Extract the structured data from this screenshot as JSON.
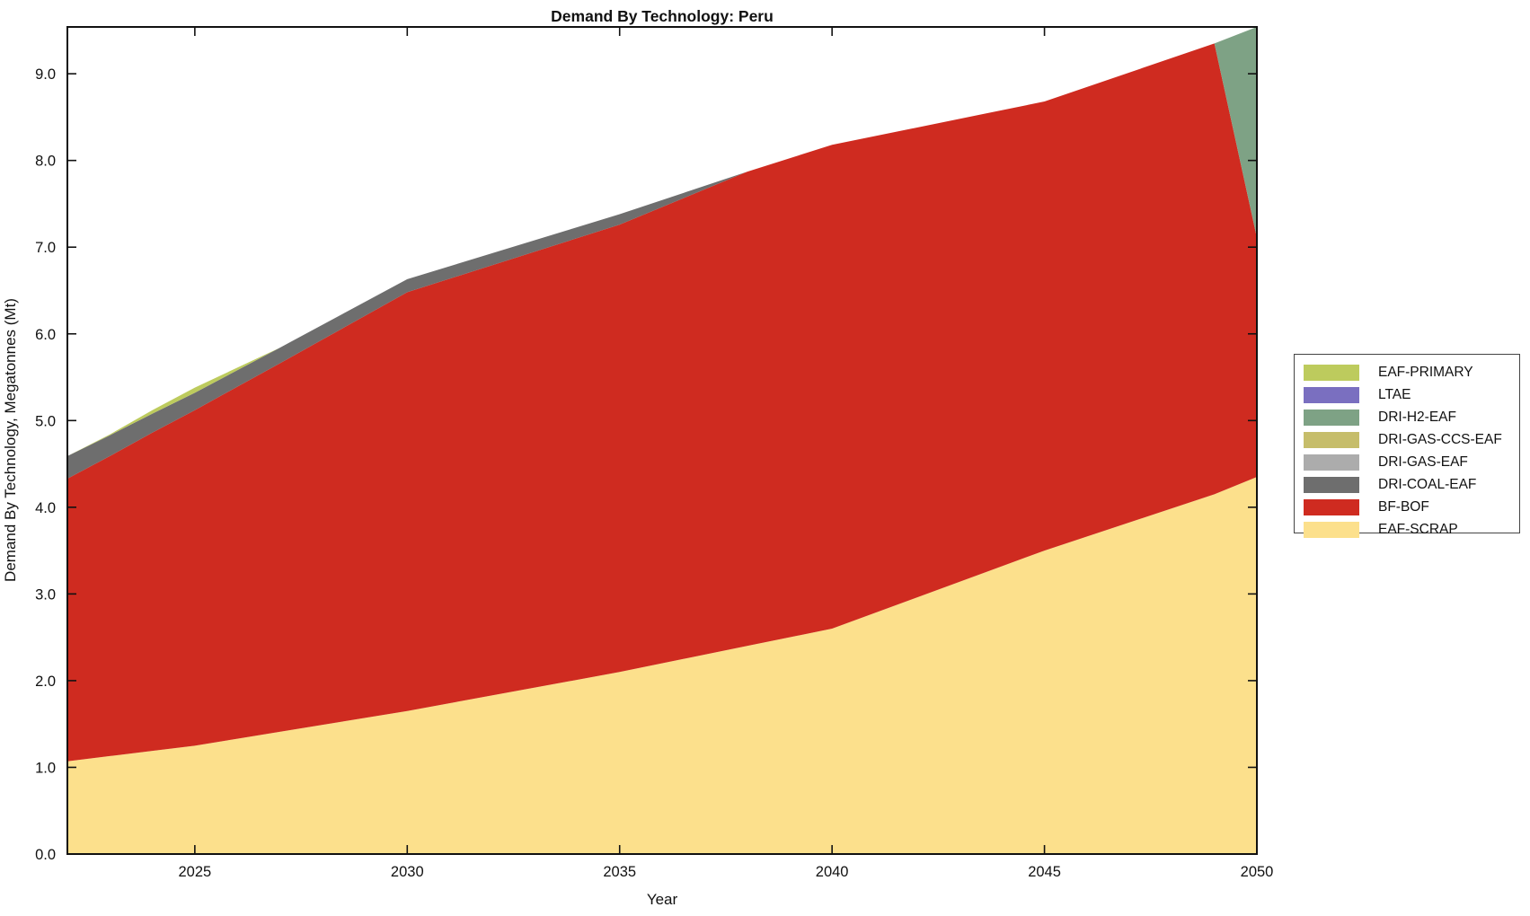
{
  "title": "Demand By Technology: Peru",
  "chart_data": {
    "type": "area",
    "stacked": true,
    "title": "Demand By Technology: Peru",
    "xlabel": "Year",
    "ylabel": "Demand By Technology, Megatonnes (Mt)",
    "xlim": [
      2022,
      2050
    ],
    "ylim": [
      0,
      9.54
    ],
    "x_ticks": [
      2025,
      2030,
      2035,
      2040,
      2045,
      2050
    ],
    "y_ticks": [
      0,
      1,
      2,
      3,
      4,
      5,
      6,
      7,
      8,
      9
    ],
    "grid": false,
    "years": [
      2022,
      2023,
      2024,
      2025,
      2026,
      2027,
      2030,
      2035,
      2038,
      2040,
      2045,
      2049,
      2050
    ],
    "series": [
      {
        "name": "EAF-SCRAP",
        "color": "#FCE08C",
        "values": [
          1.07,
          1.13,
          1.19,
          1.25,
          1.33,
          1.41,
          1.65,
          2.1,
          2.4,
          2.6,
          3.5,
          4.15,
          4.35
        ]
      },
      {
        "name": "BF-BOF",
        "color": "#CF2B20",
        "values": [
          3.26,
          3.46,
          3.67,
          3.87,
          4.06,
          4.25,
          4.83,
          5.16,
          5.47,
          5.58,
          5.18,
          5.2,
          2.76
        ]
      },
      {
        "name": "DRI-COAL-EAF",
        "color": "#6E6E6E",
        "values": [
          0.26,
          0.24,
          0.22,
          0.2,
          0.19,
          0.18,
          0.15,
          0.12,
          0,
          0,
          0,
          0,
          0
        ]
      },
      {
        "name": "DRI-GAS-EAF",
        "color": "#ACACAC",
        "values": [
          0,
          0,
          0,
          0,
          0,
          0,
          0,
          0,
          0,
          0,
          0,
          0,
          0
        ]
      },
      {
        "name": "DRI-GAS-CCS-EAF",
        "color": "#C6BD6A",
        "values": [
          0,
          0,
          0,
          0,
          0,
          0,
          0,
          0,
          0,
          0,
          0,
          0,
          0
        ]
      },
      {
        "name": "DRI-H2-EAF",
        "color": "#7EA285",
        "values": [
          0,
          0,
          0,
          0,
          0,
          0,
          0,
          0,
          0,
          0,
          0,
          0,
          2.43
        ]
      },
      {
        "name": "LTAE",
        "color": "#7A6FC0",
        "values": [
          0,
          0,
          0,
          0,
          0,
          0,
          0,
          0,
          0,
          0,
          0,
          0,
          0
        ]
      },
      {
        "name": "EAF-PRIMARY",
        "color": "#BDCB5D",
        "values": [
          0,
          0.01,
          0.04,
          0.06,
          0.03,
          0,
          0,
          0,
          0,
          0,
          0,
          0,
          0
        ]
      }
    ],
    "legend": {
      "position": "right-outside",
      "items": [
        {
          "label": "EAF-PRIMARY",
          "color": "#BDCB5D"
        },
        {
          "label": "LTAE",
          "color": "#7A6FC0"
        },
        {
          "label": "DRI-H2-EAF",
          "color": "#7EA285"
        },
        {
          "label": "DRI-GAS-CCS-EAF",
          "color": "#C6BD6A"
        },
        {
          "label": "DRI-GAS-EAF",
          "color": "#ACACAC"
        },
        {
          "label": "DRI-COAL-EAF",
          "color": "#6E6E6E"
        },
        {
          "label": "BF-BOF",
          "color": "#CF2B20"
        },
        {
          "label": "EAF-SCRAP",
          "color": "#FCE08C"
        }
      ]
    },
    "axis_color": "#111111"
  }
}
